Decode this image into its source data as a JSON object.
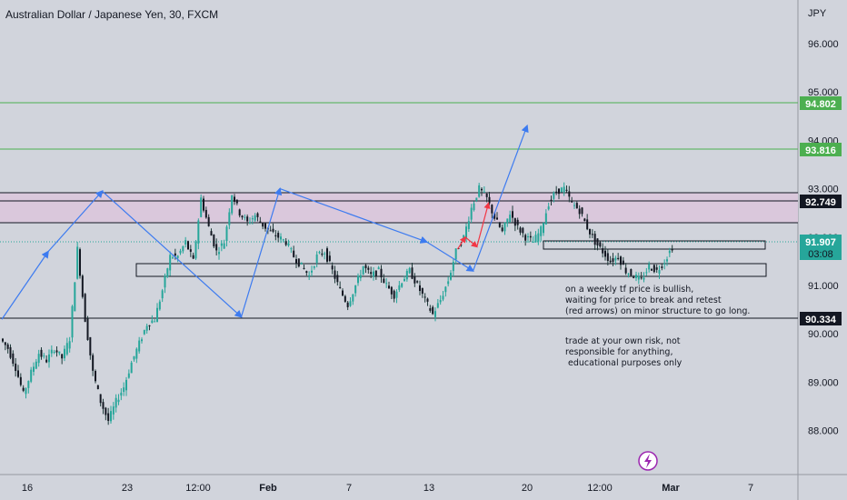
{
  "title": "Australian Dollar / Japanese Yen, 30, FXCM",
  "currency": "JPY",
  "price_axis": {
    "ticks": [
      "96.000",
      "95.000",
      "94.000",
      "93.000",
      "92.000",
      "91.000",
      "90.000",
      "89.000",
      "88.000"
    ]
  },
  "time_axis": {
    "ticks": [
      "16",
      "23",
      "12:00",
      "Feb",
      "7",
      "13",
      "20",
      "12:00",
      "Mar",
      "7"
    ]
  },
  "price_tags": [
    {
      "label": "94.802",
      "style": "green"
    },
    {
      "label": "93.816",
      "style": "green"
    },
    {
      "label": "92.749",
      "style": "dark"
    },
    {
      "label": "91.907",
      "sub": "03:08",
      "style": "teal"
    },
    {
      "label": "90.334",
      "style": "dark"
    }
  ],
  "annotations": {
    "analysis": [
      "on a weekly tf price is bullish,",
      "waiting for price to break and retest",
      "(red arrows) on minor structure to go long."
    ],
    "disclaimer": [
      "trade at your own risk, not",
      "responsible for anything,",
      " educational purposes only"
    ]
  },
  "colors": {
    "background": "#d1d4dc",
    "candle": "#26a69a",
    "blue_arrow": "#3d7bf0",
    "red_arrow": "#f23645",
    "green_line": "#4caf50",
    "zone_fill": "#dac8dc"
  },
  "icons": {
    "flash": "lightning-icon"
  },
  "chart_data": {
    "type": "candlestick",
    "title": "Australian Dollar / Japanese Yen, 30, FXCM",
    "ylabel": "JPY",
    "y_range": [
      87.2,
      97.0
    ],
    "levels": [
      94.802,
      93.816,
      92.749,
      91.907,
      90.334
    ],
    "zone": [
      92.48,
      93.05
    ],
    "close_series": [
      89.9,
      89.7,
      89.3,
      88.75,
      89.2,
      89.6,
      89.45,
      89.7,
      89.5,
      89.9,
      91.75,
      90.3,
      89.2,
      88.6,
      88.2,
      88.6,
      88.9,
      89.4,
      89.8,
      90.2,
      90.3,
      90.9,
      91.6,
      91.6,
      91.9,
      91.5,
      92.8,
      92.2,
      91.7,
      91.9,
      92.9,
      92.5,
      92.3,
      92.45,
      92.25,
      92.1,
      92.0,
      91.9,
      91.6,
      91.4,
      91.2,
      91.6,
      91.7,
      91.3,
      90.9,
      90.6,
      91.0,
      91.4,
      91.2,
      91.3,
      91.0,
      90.8,
      91.1,
      91.3,
      91.0,
      90.7,
      90.4,
      90.7,
      91.1,
      91.7,
      92.0,
      92.6,
      93.0,
      92.8,
      92.4,
      92.1,
      92.5,
      92.2,
      92.0,
      91.9,
      92.15,
      92.7,
      92.95,
      93.0,
      92.7,
      92.55,
      92.2,
      91.9,
      91.7,
      91.5,
      91.6,
      91.3,
      91.2,
      91.1,
      91.4,
      91.3,
      91.5,
      91.8
    ],
    "blue_arrow_path": [
      [
        0.0,
        90.3
      ],
      [
        6.0,
        91.7
      ],
      [
        13.0,
        92.95
      ],
      [
        31.0,
        90.35
      ],
      [
        36.0,
        93.0
      ],
      [
        55.0,
        91.9
      ],
      [
        61.0,
        91.3
      ],
      [
        68.0,
        94.3
      ]
    ],
    "red_arrow_path": [
      [
        59.0,
        91.75
      ],
      [
        60.0,
        92.0
      ],
      [
        61.5,
        91.8
      ],
      [
        63.0,
        92.7
      ]
    ]
  }
}
